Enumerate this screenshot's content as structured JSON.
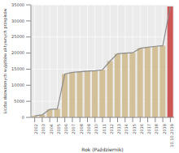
{
  "chart_data": {
    "type": "bar",
    "x_label": "Rok (Październik)",
    "y_label": "Liczba dozwolonych wyjątków aktywnych przepisów",
    "categories": [
      "2002",
      "2003",
      "2004",
      "2005",
      "2006",
      "2007",
      "2008",
      "2009",
      "2010",
      "2011",
      "2012",
      "2013",
      "2014",
      "2015",
      "2016",
      "2017",
      "2018",
      "2019",
      "10.10.2019"
    ],
    "values": [
      500,
      800,
      2500,
      2600,
      13500,
      14000,
      14200,
      14400,
      14500,
      14800,
      17500,
      19800,
      20000,
      20100,
      21500,
      21800,
      22100,
      22300,
      34500
    ],
    "colors": [
      "#d3bf98",
      "#d3bf98",
      "#d3bf98",
      "#d3bf98",
      "#d3bf98",
      "#d3bf98",
      "#d3bf98",
      "#d3bf98",
      "#d3bf98",
      "#d3bf98",
      "#d3bf98",
      "#d3bf98",
      "#d3bf98",
      "#d3bf98",
      "#d3bf98",
      "#d3bf98",
      "#d3bf98",
      "#d3bf98",
      "#cd5555"
    ],
    "ylim": [
      0,
      35000
    ],
    "yticks": [
      0,
      5000,
      10000,
      15000,
      20000,
      25000,
      30000,
      35000
    ],
    "grid": true
  }
}
